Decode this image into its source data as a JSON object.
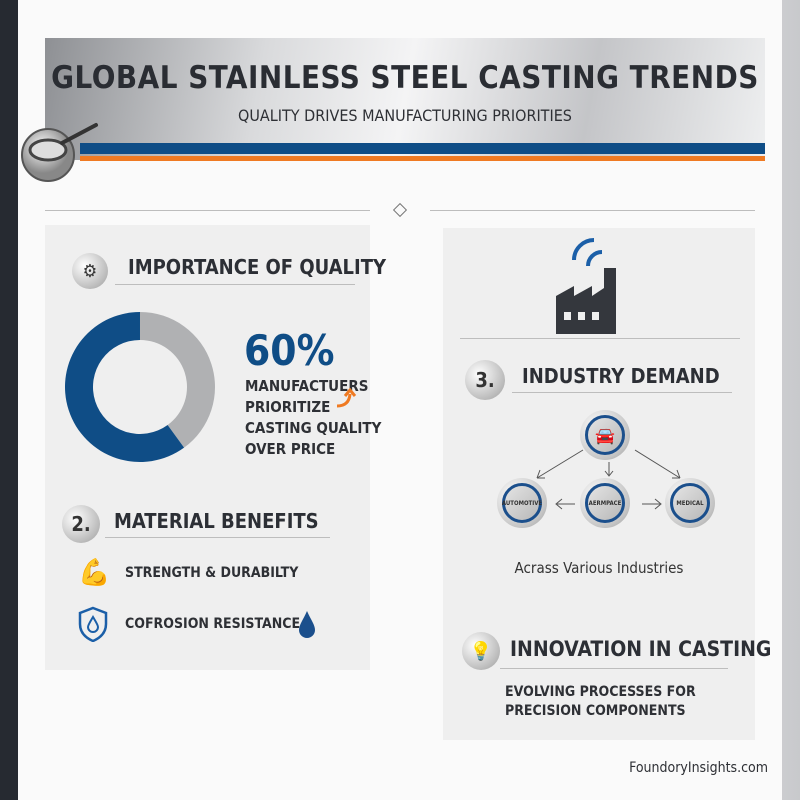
{
  "header": {
    "title": "GLOBAL STAINLESS STEEL CASTING TRENDS",
    "subtitle": "QUALITY DRIVES MANUFACTURING PRIORITIES"
  },
  "quality": {
    "heading": "IMPORTANCE OF QUALITY",
    "percent_label": "60%",
    "percent_value": 60,
    "lines": [
      "MANUFACTUERS",
      "PRIORITIZE",
      "CASTING QUALITY",
      "OVER PRICE"
    ],
    "colors": {
      "primary": "#0f4d86",
      "rest": "#b0b1b3",
      "accent": "#ef7a22"
    }
  },
  "benefits": {
    "number": "2.",
    "heading": "MATERIAL BENEFITS",
    "items": [
      "STRENGTH & DURABILTY",
      "COFROSION RESISTANCE"
    ]
  },
  "demand": {
    "number": "3.",
    "heading": "INDUSTRY DEMAND",
    "nodes": [
      "AUTOMOTIVE",
      "AERMPACE",
      "MEDICAL"
    ],
    "caption": "Acrass Various Industries"
  },
  "innovation": {
    "heading": "INNOVATION IN CASTING",
    "lines": [
      "EVOLVING PROCESSES FOR",
      "PRECISION COMPONENTS"
    ]
  },
  "footer": {
    "site": "FoundoryInsights.com"
  }
}
